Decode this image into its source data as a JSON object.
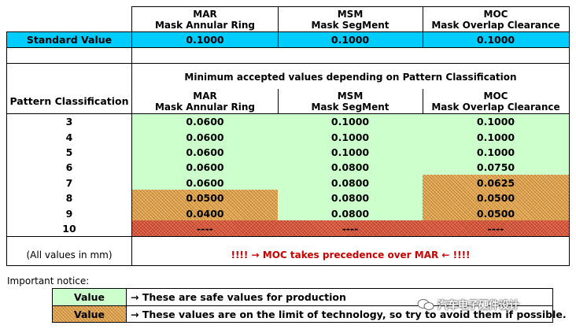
{
  "columns": [
    {
      "code": "MAR",
      "name": "Mask Annular Ring"
    },
    {
      "code": "MSM",
      "name": "Mask SegMent"
    },
    {
      "code": "MOC",
      "name": "Mask Overlap Clearance"
    }
  ],
  "standard": {
    "label": "Standard Value",
    "values": [
      "0.1000",
      "0.1000",
      "0.1000"
    ]
  },
  "section_title": "Minimum accepted values depending on Pattern Classification",
  "pattern_label": "Pattern Classification",
  "rows": [
    {
      "cls": "3",
      "values": [
        "0.0600",
        "0.1000",
        "0.1000"
      ]
    },
    {
      "cls": "4",
      "values": [
        "0.0600",
        "0.1000",
        "0.1000"
      ]
    },
    {
      "cls": "5",
      "values": [
        "0.0600",
        "0.1000",
        "0.1000"
      ]
    },
    {
      "cls": "6",
      "values": [
        "0.0600",
        "0.0800",
        "0.0750"
      ]
    },
    {
      "cls": "7",
      "values": [
        "0.0600",
        "0.0800",
        "0.0625"
      ]
    },
    {
      "cls": "8",
      "values": [
        "0.0500",
        "0.0800",
        "0.0500"
      ]
    },
    {
      "cls": "9",
      "values": [
        "0.0400",
        "0.0800",
        "0.0500"
      ]
    },
    {
      "cls": "10",
      "values": [
        "----",
        "----",
        "----"
      ]
    }
  ],
  "units_note": "(All values in mm)",
  "warning": "!!!! → MOC takes precedence over MAR ← !!!!",
  "notice_title": "Important notice:",
  "legend": [
    {
      "swatch": "Value",
      "text": "→ These are safe values for production"
    },
    {
      "swatch": "Value",
      "text": "→ These values are on the limit of technology, so try to avoid them if possible."
    }
  ],
  "watermark": "汽车电子硬件设计",
  "colors": {
    "green": "#ccffcc",
    "cyan": "#00ccff",
    "orange": "#e8a64a",
    "red": "#e2573a",
    "warning": "#cc0000"
  }
}
